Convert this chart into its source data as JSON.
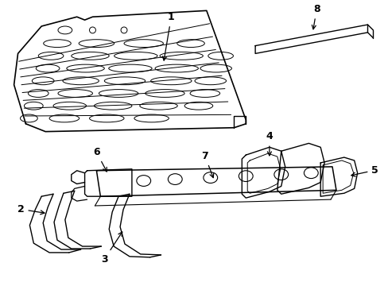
{
  "background_color": "#ffffff",
  "line_color": "#000000",
  "line_width": 1.0,
  "fig_width": 4.89,
  "fig_height": 3.6
}
